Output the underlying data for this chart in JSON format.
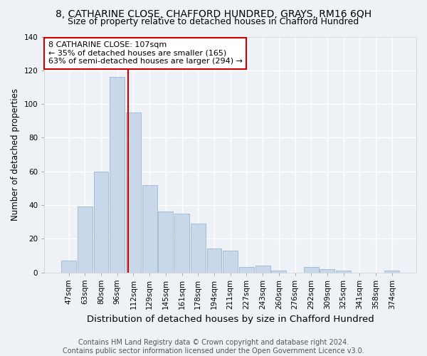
{
  "title1": "8, CATHARINE CLOSE, CHAFFORD HUNDRED, GRAYS, RM16 6QH",
  "title2": "Size of property relative to detached houses in Chafford Hundred",
  "xlabel": "Distribution of detached houses by size in Chafford Hundred",
  "ylabel": "Number of detached properties",
  "categories": [
    "47sqm",
    "63sqm",
    "80sqm",
    "96sqm",
    "112sqm",
    "129sqm",
    "145sqm",
    "161sqm",
    "178sqm",
    "194sqm",
    "211sqm",
    "227sqm",
    "243sqm",
    "260sqm",
    "276sqm",
    "292sqm",
    "309sqm",
    "325sqm",
    "341sqm",
    "358sqm",
    "374sqm"
  ],
  "values": [
    7,
    39,
    60,
    116,
    95,
    52,
    36,
    35,
    29,
    14,
    13,
    3,
    4,
    1,
    0,
    3,
    2,
    1,
    0,
    0,
    1
  ],
  "bar_color": "#c8d8ea",
  "bar_edge_color": "#9ab8d0",
  "vline_color": "#cc0000",
  "vline_x": 3.69,
  "annotation_text": "8 CATHARINE CLOSE: 107sqm\n← 35% of detached houses are smaller (165)\n63% of semi-detached houses are larger (294) →",
  "annotation_box_color": "#ffffff",
  "annotation_box_edge": "#cc0000",
  "ylim": [
    0,
    140
  ],
  "yticks": [
    0,
    20,
    40,
    60,
    80,
    100,
    120,
    140
  ],
  "footer": "Contains HM Land Registry data © Crown copyright and database right 2024.\nContains public sector information licensed under the Open Government Licence v3.0.",
  "bg_color": "#eef2f7",
  "plot_bg_color": "#eef2f7",
  "grid_color": "#ffffff",
  "title1_fontsize": 10,
  "title2_fontsize": 9,
  "xlabel_fontsize": 9.5,
  "ylabel_fontsize": 8.5,
  "tick_fontsize": 7.5,
  "footer_fontsize": 7,
  "annot_fontsize": 8
}
